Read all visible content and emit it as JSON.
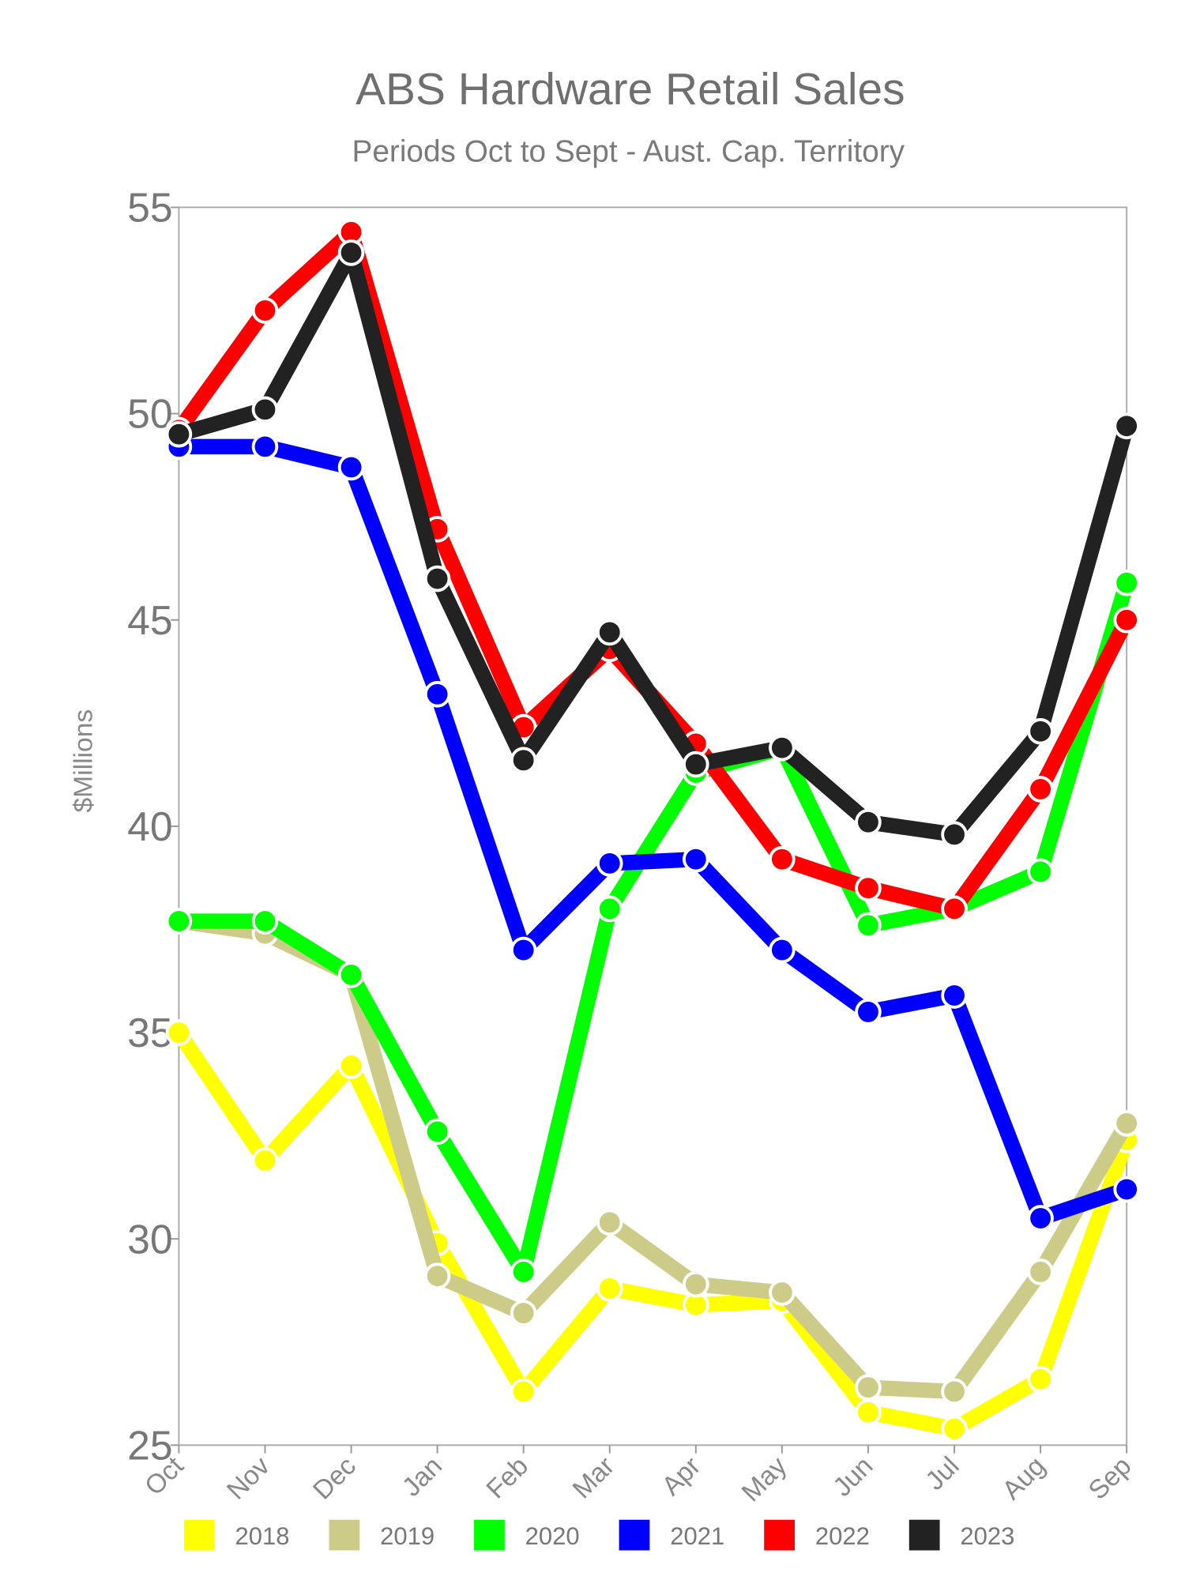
{
  "chart_data": {
    "type": "line",
    "title": "ABS Hardware Retail Sales",
    "subtitle": "Periods Oct to Sept - Aust. Cap. Territory",
    "xlabel": "",
    "ylabel": "$Millions",
    "ylim": [
      25,
      55
    ],
    "yticks": [
      "25",
      "30",
      "35",
      "40",
      "45",
      "50",
      "55"
    ],
    "yticks_values": [
      25,
      30,
      35,
      40,
      45,
      50,
      55
    ],
    "categories": [
      "Oct",
      "Nov",
      "Dec",
      "Jan",
      "Feb",
      "Mar",
      "Apr",
      "May",
      "Jun",
      "Jul",
      "Aug",
      "Sep"
    ],
    "legend_position": "bottom",
    "grid": false,
    "series": [
      {
        "name": "2018",
        "color": "#ffff00",
        "values": [
          35.0,
          31.9,
          34.2,
          29.9,
          26.3,
          28.8,
          28.4,
          28.5,
          25.8,
          25.4,
          26.6,
          32.4
        ]
      },
      {
        "name": "2019",
        "color": "#cccc88",
        "values": [
          37.7,
          37.4,
          36.4,
          29.1,
          28.2,
          30.4,
          28.9,
          28.7,
          26.4,
          26.3,
          29.2,
          32.8
        ]
      },
      {
        "name": "2020",
        "color": "#00ff00",
        "values": [
          37.7,
          37.7,
          36.4,
          32.6,
          29.2,
          38.0,
          41.3,
          41.9,
          37.6,
          38.0,
          38.9,
          45.9
        ]
      },
      {
        "name": "2021",
        "color": "#0000ff",
        "values": [
          49.2,
          49.2,
          48.7,
          43.2,
          37.0,
          39.1,
          39.2,
          37.0,
          35.5,
          35.9,
          30.5,
          31.2
        ]
      },
      {
        "name": "2022",
        "color": "#ff0000",
        "values": [
          49.6,
          52.5,
          54.4,
          47.2,
          42.4,
          44.3,
          42.0,
          39.2,
          38.5,
          38.0,
          40.9,
          45.0
        ]
      },
      {
        "name": "2023",
        "color": "#222222",
        "values": [
          49.5,
          50.1,
          53.9,
          46.0,
          41.6,
          44.7,
          41.5,
          41.9,
          40.1,
          39.8,
          42.3,
          49.7
        ]
      }
    ]
  }
}
